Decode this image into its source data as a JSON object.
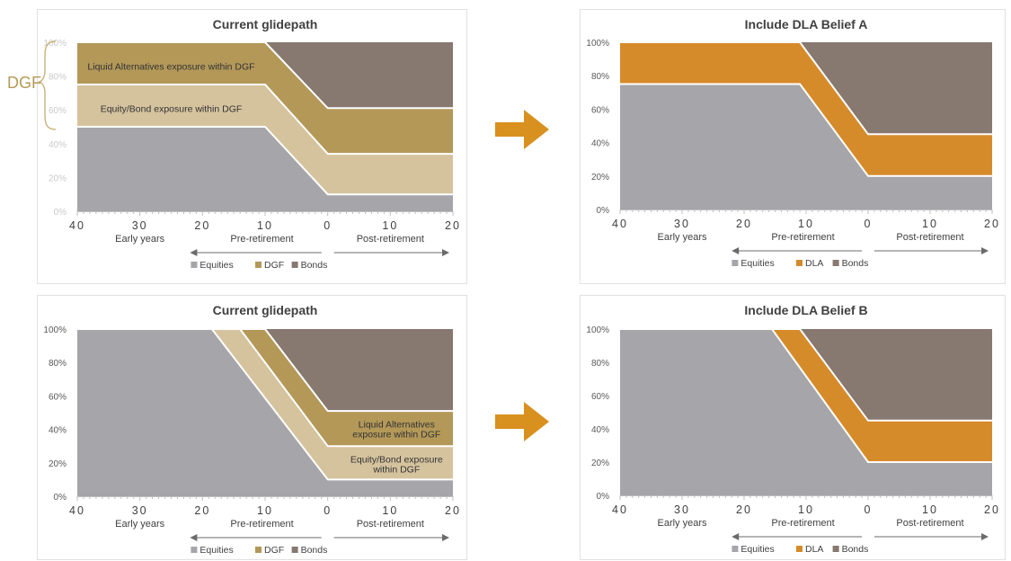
{
  "colors": {
    "equities": "#a6a5a9",
    "dgf_liquid": "#b39858",
    "dgf_equity_bond": "#d5c39e",
    "bonds": "#877870",
    "dla": "#d68b2b",
    "arrow": "#d8901f",
    "axis": "#bfbfbf",
    "brace": "#c7b27a"
  },
  "side_label": "DGF",
  "chart_data": [
    {
      "type": "area",
      "title": "Current glidepath",
      "x": [
        40,
        30,
        20,
        10,
        0,
        10,
        20
      ],
      "x_ticks": [
        "40",
        "30",
        "20",
        "10",
        "0",
        "10",
        "20"
      ],
      "phase_labels": {
        "early": "Early years",
        "pre": "Pre-retirement",
        "post": "Post-retirement"
      },
      "ylim": [
        0,
        100
      ],
      "y_ticks": [
        "0%",
        "20%",
        "40%",
        "60%",
        "80%",
        "100%"
      ],
      "stack": [
        {
          "name": "Equities",
          "color_key": "equities",
          "points": [
            [
              40,
              50
            ],
            [
              10,
              50
            ],
            [
              0,
              10
            ],
            [
              -20,
              10
            ]
          ]
        },
        {
          "name": "Equity/Bond exposure within DGF",
          "color_key": "dgf_equity_bond",
          "points": [
            [
              40,
              75
            ],
            [
              10,
              75
            ],
            [
              0,
              34
            ],
            [
              -20,
              34
            ]
          ]
        },
        {
          "name": "Liquid Alternatives exposure within DGF",
          "color_key": "dgf_liquid",
          "points": [
            [
              40,
              100
            ],
            [
              10,
              100
            ],
            [
              0,
              61
            ],
            [
              -20,
              61
            ]
          ]
        },
        {
          "name": "Bonds",
          "color_key": "bonds",
          "points": [
            [
              40,
              100
            ],
            [
              -20,
              100
            ]
          ]
        }
      ],
      "annotations": [
        {
          "text": "Liquid Alternatives exposure within DGF",
          "x": 25,
          "y": 86
        },
        {
          "text": "Equity/Bond exposure within DGF",
          "x": 25,
          "y": 61
        }
      ],
      "legend": [
        {
          "name": "Equities",
          "color_key": "equities"
        },
        {
          "name": "DGF",
          "color_key": "dgf_liquid"
        },
        {
          "name": "Bonds",
          "color_key": "bonds"
        }
      ],
      "legend_position": "bottom",
      "y_ticks_faded": true
    },
    {
      "type": "area",
      "title": "Include DLA Belief A",
      "x": [
        40,
        30,
        20,
        10,
        0,
        10,
        20
      ],
      "x_ticks": [
        "40",
        "30",
        "20",
        "10",
        "0",
        "10",
        "20"
      ],
      "phase_labels": {
        "early": "Early years",
        "pre": "Pre-retirement",
        "post": "Post-retirement"
      },
      "ylim": [
        0,
        100
      ],
      "y_ticks": [
        "0%",
        "20%",
        "40%",
        "60%",
        "80%",
        "100%"
      ],
      "stack": [
        {
          "name": "Equities",
          "color_key": "equities",
          "points": [
            [
              40,
              75
            ],
            [
              11,
              75
            ],
            [
              0,
              20
            ],
            [
              -20,
              20
            ]
          ]
        },
        {
          "name": "DLA",
          "color_key": "dla",
          "points": [
            [
              40,
              100
            ],
            [
              11,
              100
            ],
            [
              0,
              45
            ],
            [
              -20,
              45
            ]
          ]
        },
        {
          "name": "Bonds",
          "color_key": "bonds",
          "points": [
            [
              40,
              100
            ],
            [
              -20,
              100
            ]
          ]
        }
      ],
      "annotations": [],
      "legend": [
        {
          "name": "Equities",
          "color_key": "equities"
        },
        {
          "name": "DLA",
          "color_key": "dla"
        },
        {
          "name": "Bonds",
          "color_key": "bonds"
        }
      ],
      "legend_position": "bottom",
      "y_ticks_faded": false
    },
    {
      "type": "area",
      "title": "Current glidepath",
      "x": [
        40,
        30,
        20,
        10,
        0,
        10,
        20
      ],
      "x_ticks": [
        "40",
        "30",
        "20",
        "10",
        "0",
        "10",
        "20"
      ],
      "phase_labels": {
        "early": "Early years",
        "pre": "Pre-retirement",
        "post": "Post-retirement"
      },
      "ylim": [
        0,
        100
      ],
      "y_ticks": [
        "0%",
        "20%",
        "40%",
        "60%",
        "80%",
        "100%"
      ],
      "stack": [
        {
          "name": "Equities",
          "color_key": "equities",
          "points": [
            [
              40,
              100
            ],
            [
              18.5,
              100
            ],
            [
              0,
              10
            ],
            [
              -20,
              10
            ]
          ]
        },
        {
          "name": "Equity/Bond exposure within DGF",
          "color_key": "dgf_equity_bond",
          "points": [
            [
              40,
              100
            ],
            [
              14,
              100
            ],
            [
              0,
              30
            ],
            [
              -20,
              30
            ]
          ]
        },
        {
          "name": "Liquid Alternatives exposure within DGF",
          "color_key": "dgf_liquid",
          "points": [
            [
              40,
              100
            ],
            [
              10,
              100
            ],
            [
              0,
              51
            ],
            [
              -20,
              51
            ]
          ]
        },
        {
          "name": "Bonds",
          "color_key": "bonds",
          "points": [
            [
              40,
              100
            ],
            [
              -20,
              100
            ]
          ]
        }
      ],
      "annotations": [
        {
          "text": "Liquid Alternatives exposure within DGF",
          "x": -11,
          "y": 40
        },
        {
          "text": "Equity/Bond exposure within DGF",
          "x": -11,
          "y": 19
        }
      ],
      "legend": [
        {
          "name": "Equities",
          "color_key": "equities"
        },
        {
          "name": "DGF",
          "color_key": "dgf_liquid"
        },
        {
          "name": "Bonds",
          "color_key": "bonds"
        }
      ],
      "legend_position": "bottom",
      "y_ticks_faded": false
    },
    {
      "type": "area",
      "title": "Include DLA Belief B",
      "x": [
        40,
        30,
        20,
        10,
        0,
        10,
        20
      ],
      "x_ticks": [
        "40",
        "30",
        "20",
        "10",
        "0",
        "10",
        "20"
      ],
      "phase_labels": {
        "early": "Early years",
        "pre": "Pre-retirement",
        "post": "Post-retirement"
      },
      "ylim": [
        0,
        100
      ],
      "y_ticks": [
        "0%",
        "20%",
        "40%",
        "60%",
        "80%",
        "100%"
      ],
      "stack": [
        {
          "name": "Equities",
          "color_key": "equities",
          "points": [
            [
              40,
              100
            ],
            [
              15.5,
              100
            ],
            [
              0,
              20
            ],
            [
              -20,
              20
            ]
          ]
        },
        {
          "name": "DLA",
          "color_key": "dla",
          "points": [
            [
              40,
              100
            ],
            [
              11,
              100
            ],
            [
              0,
              45
            ],
            [
              -20,
              45
            ]
          ]
        },
        {
          "name": "Bonds",
          "color_key": "bonds",
          "points": [
            [
              40,
              100
            ],
            [
              -20,
              100
            ]
          ]
        }
      ],
      "annotations": [],
      "legend": [
        {
          "name": "Equities",
          "color_key": "equities"
        },
        {
          "name": "DLA",
          "color_key": "dla"
        },
        {
          "name": "Bonds",
          "color_key": "bonds"
        }
      ],
      "legend_position": "bottom",
      "y_ticks_faded": false
    }
  ]
}
